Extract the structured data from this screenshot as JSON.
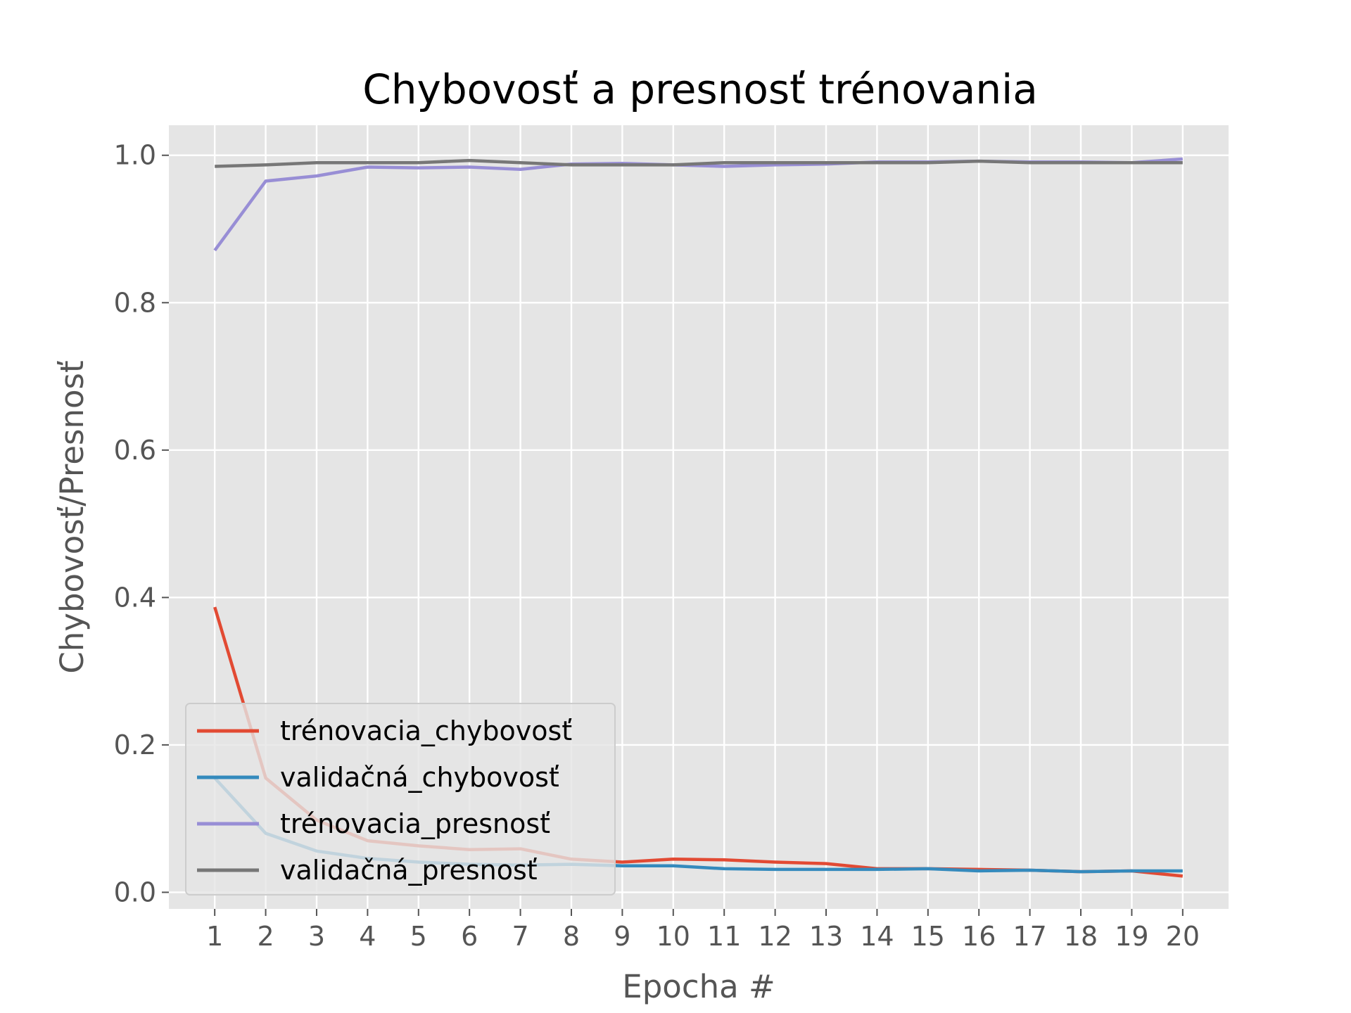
{
  "chart_data": {
    "type": "line",
    "title": "Chybovosť a presnosť trénovania",
    "xlabel": "Epocha #",
    "ylabel": "Chybovosť/Presnosť",
    "x": [
      1,
      2,
      3,
      4,
      5,
      6,
      7,
      8,
      9,
      10,
      11,
      12,
      13,
      14,
      15,
      16,
      17,
      18,
      19,
      20
    ],
    "xlim": [
      0.1,
      20.9
    ],
    "ylim": [
      -0.0225,
      1.0408
    ],
    "yticks": [
      0.0,
      0.2,
      0.4,
      0.6,
      0.8,
      1.0
    ],
    "ytick_labels": [
      "0.0",
      "0.2",
      "0.4",
      "0.6",
      "0.8",
      "1.0"
    ],
    "grid": true,
    "legend_position": "lower-left",
    "series": [
      {
        "name": "trénovacia_chybovosť",
        "color": "#e24a33",
        "values": [
          0.387,
          0.155,
          0.098,
          0.07,
          0.063,
          0.058,
          0.059,
          0.045,
          0.041,
          0.045,
          0.044,
          0.041,
          0.039,
          0.032,
          0.032,
          0.031,
          0.03,
          0.028,
          0.029,
          0.022
        ]
      },
      {
        "name": "validačná_chybovosť",
        "color": "#348abd",
        "values": [
          0.155,
          0.08,
          0.056,
          0.046,
          0.041,
          0.038,
          0.037,
          0.038,
          0.036,
          0.036,
          0.032,
          0.031,
          0.031,
          0.031,
          0.032,
          0.029,
          0.03,
          0.028,
          0.029,
          0.029
        ]
      },
      {
        "name": "trénovacia_presnosť",
        "color": "#988ed5",
        "values": [
          0.871,
          0.965,
          0.972,
          0.984,
          0.983,
          0.984,
          0.981,
          0.988,
          0.989,
          0.987,
          0.985,
          0.987,
          0.988,
          0.991,
          0.991,
          0.992,
          0.991,
          0.991,
          0.99,
          0.995
        ]
      },
      {
        "name": "validačná_presnosť",
        "color": "#777777",
        "values": [
          0.985,
          0.987,
          0.99,
          0.99,
          0.99,
          0.993,
          0.99,
          0.987,
          0.987,
          0.987,
          0.99,
          0.99,
          0.99,
          0.99,
          0.99,
          0.992,
          0.99,
          0.99,
          0.99,
          0.99
        ]
      }
    ]
  }
}
